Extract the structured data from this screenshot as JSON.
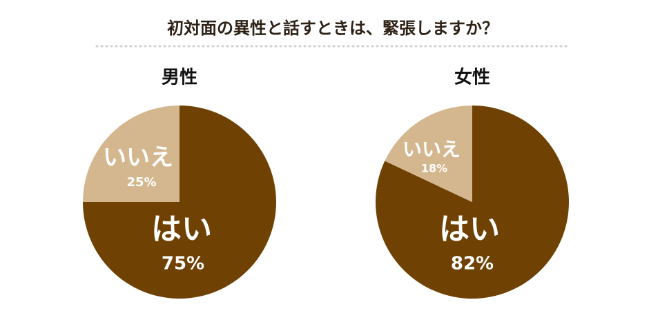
{
  "title": "初対面の異性と話すときは、緊張しますか？",
  "chart_data": [
    {
      "type": "pie",
      "title": "男性",
      "categories": [
        "はい",
        "いいえ"
      ],
      "values": [
        75,
        25
      ],
      "value_labels": [
        "75%",
        "25%"
      ],
      "colors": [
        "#6f4103",
        "#d4b78f"
      ]
    },
    {
      "type": "pie",
      "title": "女性",
      "categories": [
        "はい",
        "いいえ"
      ],
      "values": [
        82,
        18
      ],
      "value_labels": [
        "82%",
        "18%"
      ],
      "colors": [
        "#6f4103",
        "#d4b78f"
      ]
    }
  ]
}
